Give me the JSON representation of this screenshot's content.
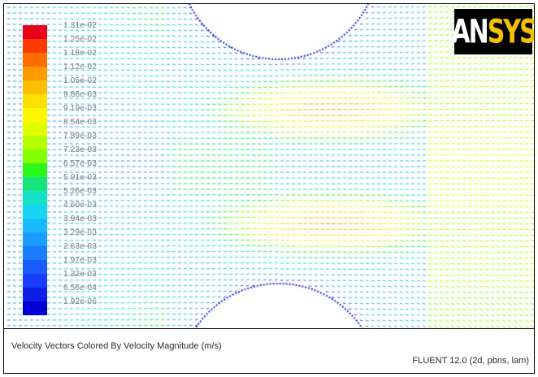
{
  "logo": {
    "text": "ANSYS",
    "text_prefix": "AN",
    "text_suffix": "SYS"
  },
  "colorbar": {
    "labels": [
      "1.31e-02",
      "1.25e-02",
      "1.18e-02",
      "1.12e-02",
      "1.05e-02",
      "9.86e-03",
      "9.19e-03",
      "8.54e-03",
      "7.89e-03",
      "7.23e-03",
      "6.57e-03",
      "5.91e-03",
      "5.26e-03",
      "4.60e-03",
      "3.94e-03",
      "3.29e-03",
      "2.63e-03",
      "1.97e-03",
      "1.32e-03",
      "6.56e-04",
      "1.92e-06"
    ],
    "colors": [
      "#e8001a",
      "#ff3a00",
      "#ff6d00",
      "#ff9a00",
      "#ffbe00",
      "#ffe000",
      "#fff700",
      "#e2ff00",
      "#b4ff00",
      "#86ff00",
      "#2cf71c",
      "#16e37a",
      "#13e3c4",
      "#16d5f2",
      "#1bb9ff",
      "#1a9bff",
      "#1a7cff",
      "#1a5cff",
      "#1a3cff",
      "#0f1ee4",
      "#0000d6"
    ]
  },
  "caption": {
    "title": "Velocity Vectors Colored By Velocity Magnitude (m/s)",
    "solver": "FLUENT 12.0 (2d, pbns, lam)"
  },
  "colors": {
    "obstacle": "#ffffff",
    "frame": "#000000"
  }
}
